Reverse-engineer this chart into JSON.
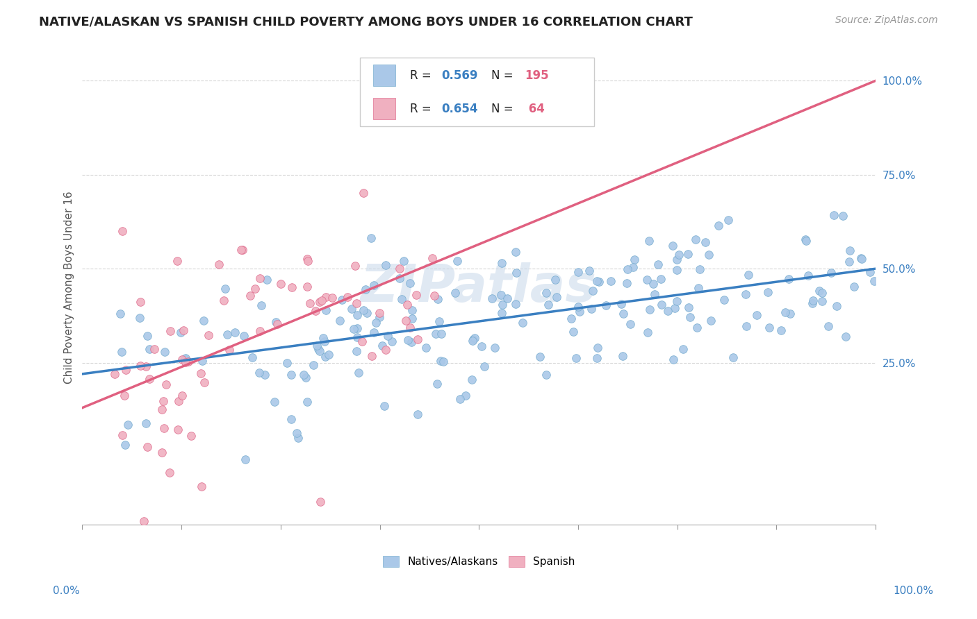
{
  "title": "NATIVE/ALASKAN VS SPANISH CHILD POVERTY AMONG BOYS UNDER 16 CORRELATION CHART",
  "source": "Source: ZipAtlas.com",
  "ylabel": "Child Poverty Among Boys Under 16",
  "ytick_vals": [
    0.25,
    0.5,
    0.75,
    1.0
  ],
  "ytick_labels": [
    "25.0%",
    "50.0%",
    "75.0%",
    "100.0%"
  ],
  "legend_labels": [
    "Natives/Alaskans",
    "Spanish"
  ],
  "blue_r": 0.569,
  "blue_n": 195,
  "pink_r": 0.654,
  "pink_n": 64,
  "blue_dot_color": "#aac8e8",
  "blue_dot_edge": "#7aaed0",
  "pink_dot_color": "#f0b0c0",
  "pink_dot_edge": "#e07090",
  "blue_line_color": "#3a7fc1",
  "pink_line_color": "#e06080",
  "watermark_color": "#c8d8ea",
  "bg_color": "#ffffff",
  "title_fontsize": 13,
  "axis_label_fontsize": 11,
  "tick_fontsize": 11,
  "source_fontsize": 10,
  "blue_line_intercept": 0.22,
  "blue_line_slope": 0.28,
  "pink_line_intercept": 0.13,
  "pink_line_slope": 0.87
}
